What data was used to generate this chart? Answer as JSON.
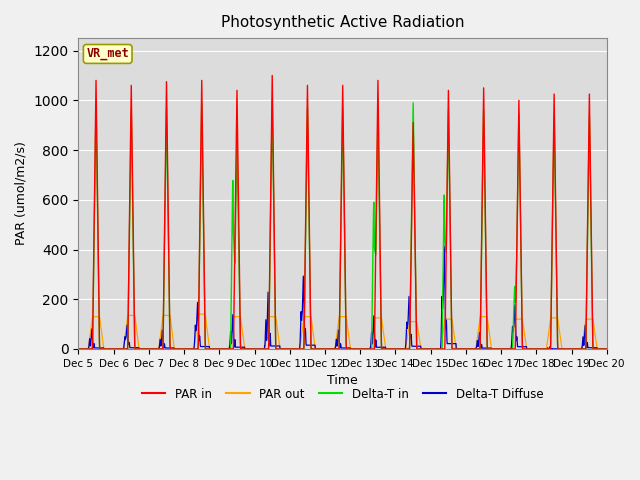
{
  "title": "Photosynthetic Active Radiation",
  "xlabel": "Time",
  "ylabel": "PAR (umol/m2/s)",
  "ylim": [
    0,
    1250
  ],
  "yticks": [
    0,
    200,
    400,
    600,
    800,
    1000,
    1200
  ],
  "xtick_labels": [
    "Dec 5",
    "Dec 6",
    "Dec 7",
    "Dec 8",
    "Dec 9",
    "Dec 10",
    "Dec 11",
    "Dec 12",
    "Dec 13",
    "Dec 14",
    "Dec 15",
    "Dec 16",
    "Dec 17",
    "Dec 18",
    "Dec 19",
    "Dec 20"
  ],
  "plot_bg": "#dcdcdc",
  "fig_bg": "#f0f0f0",
  "grid_color": "#c8c8c8",
  "par_in_color": "#ff0000",
  "par_out_color": "#ffa500",
  "delta_t_in_color": "#00dd00",
  "delta_t_diffuse_color": "#0000cc",
  "par_in_peaks": [
    1080,
    1060,
    1075,
    1080,
    1040,
    1100,
    1060,
    1060,
    1080,
    910,
    1040,
    1050,
    1000,
    1025,
    1025
  ],
  "par_out_peaks": [
    130,
    135,
    135,
    140,
    130,
    130,
    130,
    130,
    125,
    110,
    120,
    130,
    120,
    125,
    120
  ],
  "delta_t_in_peaks": [
    975,
    960,
    970,
    990,
    840,
    1000,
    970,
    970,
    940,
    990,
    960,
    960,
    945,
    940,
    940
  ],
  "delta_t_in_peak2": [
    0,
    0,
    0,
    0,
    700,
    0,
    0,
    0,
    610,
    0,
    640,
    0,
    260,
    0,
    0
  ],
  "delta_t_diffuse_peaks": [
    85,
    100,
    80,
    195,
    145,
    240,
    305,
    80,
    140,
    220,
    430,
    70,
    185,
    10,
    100
  ],
  "delta_t_diffuse_width": [
    0.04,
    0.05,
    0.04,
    0.05,
    0.04,
    0.04,
    0.05,
    0.04,
    0.04,
    0.05,
    0.05,
    0.04,
    0.05,
    0.02,
    0.04
  ],
  "label_vr_met": "VR_met",
  "legend_entries": [
    "PAR in",
    "PAR out",
    "Delta-T in",
    "Delta-T Diffuse"
  ],
  "n_days": 15
}
